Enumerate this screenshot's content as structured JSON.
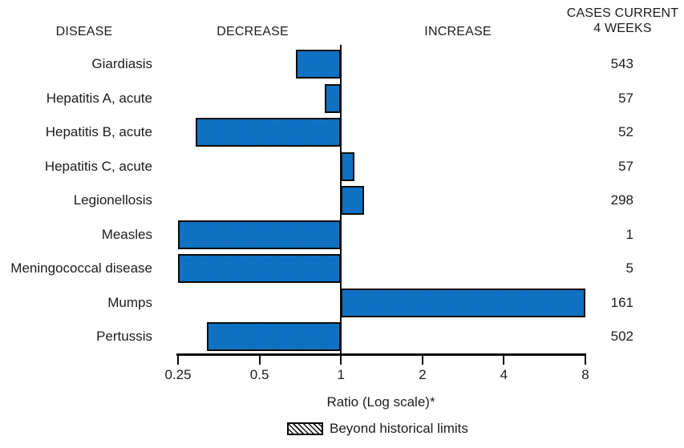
{
  "figure": {
    "headers": {
      "disease": "DISEASE",
      "decrease": "DECREASE",
      "increase": "INCREASE",
      "cases_line1": "CASES CURRENT",
      "cases_line2": "4 WEEKS"
    },
    "xlabel": "Ratio (Log scale)*",
    "legend_label": "Beyond historical limits"
  },
  "chart_data": {
    "type": "bar",
    "orientation": "horizontal",
    "scale": "log2",
    "baseline_ratio": 1,
    "x_axis": {
      "label": "Ratio (Log scale)*",
      "range": [
        0.25,
        8
      ],
      "ticks": [
        0.25,
        0.5,
        1,
        2,
        4,
        8
      ],
      "tick_labels": [
        "0.25",
        "0.5",
        "1",
        "2",
        "4",
        "8"
      ]
    },
    "columns": {
      "disease": "DISEASE",
      "ratio": "Ratio (Log scale)*",
      "cases": "CASES CURRENT 4 WEEKS"
    },
    "rows": [
      {
        "disease": "Giardiasis",
        "ratio": 0.68,
        "cases": 543
      },
      {
        "disease": "Hepatitis A, acute",
        "ratio": 0.87,
        "cases": 57
      },
      {
        "disease": "Hepatitis B, acute",
        "ratio": 0.29,
        "cases": 52
      },
      {
        "disease": "Hepatitis C, acute",
        "ratio": 1.12,
        "cases": 57
      },
      {
        "disease": "Legionellosis",
        "ratio": 1.22,
        "cases": 298
      },
      {
        "disease": "Measles",
        "ratio": 0.25,
        "cases": 1
      },
      {
        "disease": "Meningococcal disease",
        "ratio": 0.25,
        "cases": 5
      },
      {
        "disease": "Mumps",
        "ratio": 8,
        "cases": 161
      },
      {
        "disease": "Pertussis",
        "ratio": 0.32,
        "cases": 502
      }
    ],
    "legend": {
      "label": "Beyond historical limits",
      "swatch": "black-diagonal-hatch"
    },
    "colors": {
      "bar_fill": "#0f72c6",
      "bar_border": "#0a0a0a",
      "axis": "#0a0a0a",
      "text": "#1c1c1c"
    }
  }
}
